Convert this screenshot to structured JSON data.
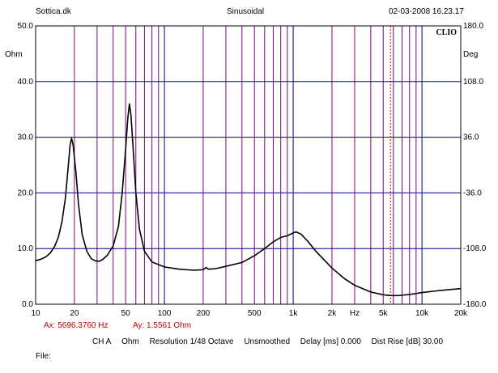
{
  "header": {
    "brand": "Sottica.dk",
    "signal": "Sinusoidal",
    "datetime": "02-03-2008 16.23.17"
  },
  "logo": "CLIO",
  "left_unit": "Ohm",
  "right_unit": "Deg",
  "cursor": {
    "frequency": "Ax: 5696.3760 Hz",
    "value": "Ay: 1.5561 Ohm"
  },
  "settings": {
    "channel": "CH A",
    "unit": "Ohm",
    "resolution": "Resolution 1/48 Octave",
    "smoothing": "Unsmoothed",
    "delay": "Delay [ms] 0.000",
    "dist_rise": "Dist Rise [dB] 30.00"
  },
  "file_label": "File:",
  "colors": {
    "grid_major": "#000080",
    "grid_minor": "#800080",
    "curve": "#000000",
    "cursor_line": "#c00000",
    "cursor_text": "#c00000"
  },
  "chart_data": {
    "type": "line",
    "x_scale": "log",
    "xlim": [
      10,
      20000
    ],
    "ylim": [
      0,
      50
    ],
    "y2lim": [
      -180,
      180
    ],
    "grid": true,
    "x_ticks": [
      {
        "value": 10,
        "label": "10"
      },
      {
        "value": 20,
        "label": "20"
      },
      {
        "value": 50,
        "label": "50"
      },
      {
        "value": 100,
        "label": "100"
      },
      {
        "value": 200,
        "label": "200"
      },
      {
        "value": 500,
        "label": "500"
      },
      {
        "value": 1000,
        "label": "1k"
      },
      {
        "value": 2000,
        "label": "2k"
      },
      {
        "value": 3000,
        "label": "Hz"
      },
      {
        "value": 5000,
        "label": "5k"
      },
      {
        "value": 10000,
        "label": "10k"
      },
      {
        "value": 20000,
        "label": "20k"
      }
    ],
    "y_ticks": [
      {
        "value": 0,
        "label": "0.0"
      },
      {
        "value": 10,
        "label": "10.0"
      },
      {
        "value": 20,
        "label": "20.0"
      },
      {
        "value": 30,
        "label": "30.0"
      },
      {
        "value": 40,
        "label": "40.0"
      },
      {
        "value": 50,
        "label": "50.0"
      }
    ],
    "y2_ticks": [
      {
        "value": -180,
        "label": "-180.0"
      },
      {
        "value": -108,
        "label": "-108.0"
      },
      {
        "value": -36,
        "label": "-36.0"
      },
      {
        "value": 36,
        "label": "36.0"
      },
      {
        "value": 108,
        "label": "108.0"
      },
      {
        "value": 180,
        "label": "180.0"
      }
    ],
    "cursor_x": 5696.376,
    "series": [
      {
        "values": [
          [
            10,
            7.8
          ],
          [
            11,
            8.1
          ],
          [
            12,
            8.5
          ],
          [
            13,
            9.2
          ],
          [
            14,
            10.3
          ],
          [
            15,
            12.0
          ],
          [
            16,
            14.8
          ],
          [
            17,
            19.0
          ],
          [
            17.8,
            24.0
          ],
          [
            18.5,
            28.5
          ],
          [
            19,
            29.8
          ],
          [
            19.5,
            28.8
          ],
          [
            20.5,
            24.0
          ],
          [
            21.5,
            18.0
          ],
          [
            23,
            12.5
          ],
          [
            25,
            9.5
          ],
          [
            27,
            8.2
          ],
          [
            29,
            7.8
          ],
          [
            31,
            7.7
          ],
          [
            33,
            8.0
          ],
          [
            36,
            8.8
          ],
          [
            40,
            10.5
          ],
          [
            44,
            14.0
          ],
          [
            47,
            20.0
          ],
          [
            50,
            28.0
          ],
          [
            52,
            33.5
          ],
          [
            53.5,
            36.0
          ],
          [
            55,
            34.0
          ],
          [
            57,
            28.5
          ],
          [
            60,
            20.0
          ],
          [
            64,
            13.5
          ],
          [
            70,
            9.5
          ],
          [
            80,
            7.6
          ],
          [
            100,
            6.7
          ],
          [
            130,
            6.3
          ],
          [
            170,
            6.1
          ],
          [
            200,
            6.2
          ],
          [
            210,
            6.6
          ],
          [
            220,
            6.3
          ],
          [
            250,
            6.4
          ],
          [
            300,
            6.8
          ],
          [
            400,
            7.5
          ],
          [
            500,
            8.7
          ],
          [
            600,
            10.0
          ],
          [
            700,
            11.2
          ],
          [
            800,
            12.0
          ],
          [
            900,
            12.3
          ],
          [
            1000,
            12.8
          ],
          [
            1050,
            13.0
          ],
          [
            1150,
            12.6
          ],
          [
            1300,
            11.3
          ],
          [
            1500,
            9.5
          ],
          [
            2000,
            6.5
          ],
          [
            2500,
            4.6
          ],
          [
            3000,
            3.4
          ],
          [
            4000,
            2.2
          ],
          [
            5000,
            1.7
          ],
          [
            5700,
            1.56
          ],
          [
            6500,
            1.55
          ],
          [
            8000,
            1.75
          ],
          [
            10000,
            2.1
          ],
          [
            13000,
            2.4
          ],
          [
            16000,
            2.6
          ],
          [
            20000,
            2.8
          ]
        ]
      }
    ]
  }
}
